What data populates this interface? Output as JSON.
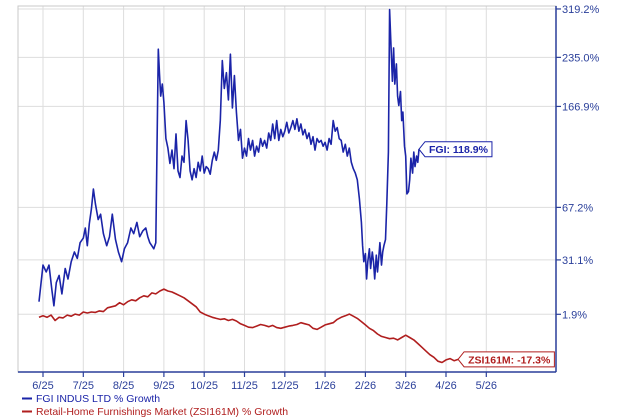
{
  "colors": {
    "series1": "#1b24a8",
    "series2": "#b01e1e",
    "axis": "#2a3f9a",
    "grid": "#dddddd"
  },
  "chart_data": {
    "type": "line",
    "xlabel": "",
    "ylabel": "",
    "y_scale": "log1p",
    "grid": true,
    "legend_position": "bottom-left",
    "y_ticks": [
      {
        "value": 319.2,
        "label": "319.2%"
      },
      {
        "value": 235.0,
        "label": "235.0%"
      },
      {
        "value": 166.9,
        "label": "166.9%"
      },
      {
        "value": 67.2,
        "label": "67.2%"
      },
      {
        "value": 31.1,
        "label": "31.1%"
      },
      {
        "value": 1.9,
        "label": "1.9%"
      }
    ],
    "x_ticks": [
      "6/25",
      "7/25",
      "8/25",
      "9/25",
      "10/25",
      "11/25",
      "12/25",
      "1/26",
      "2/26",
      "3/26",
      "4/26",
      "5/26"
    ],
    "series": [
      {
        "name": "FGI INDUS LTD % Growth",
        "callout": "FGI: 118.9%",
        "color": "#1b24a8",
        "points": [
          [
            -0.1,
            8
          ],
          [
            0.0,
            28
          ],
          [
            0.08,
            24
          ],
          [
            0.15,
            28
          ],
          [
            0.22,
            14
          ],
          [
            0.27,
            6
          ],
          [
            0.33,
            18
          ],
          [
            0.4,
            22
          ],
          [
            0.47,
            12
          ],
          [
            0.55,
            26
          ],
          [
            0.62,
            20
          ],
          [
            0.7,
            30
          ],
          [
            0.78,
            36
          ],
          [
            0.85,
            32
          ],
          [
            0.92,
            42
          ],
          [
            1.0,
            45
          ],
          [
            1.05,
            52
          ],
          [
            1.1,
            40
          ],
          [
            1.15,
            55
          ],
          [
            1.2,
            66
          ],
          [
            1.25,
            82
          ],
          [
            1.3,
            70
          ],
          [
            1.37,
            58
          ],
          [
            1.43,
            62
          ],
          [
            1.5,
            48
          ],
          [
            1.58,
            40
          ],
          [
            1.65,
            46
          ],
          [
            1.72,
            62
          ],
          [
            1.8,
            44
          ],
          [
            1.87,
            36
          ],
          [
            1.95,
            30
          ],
          [
            2.02,
            38
          ],
          [
            2.1,
            42
          ],
          [
            2.18,
            52
          ],
          [
            2.25,
            48
          ],
          [
            2.33,
            56
          ],
          [
            2.4,
            46
          ],
          [
            2.48,
            50
          ],
          [
            2.55,
            52
          ],
          [
            2.6,
            46
          ],
          [
            2.65,
            42
          ],
          [
            2.7,
            40
          ],
          [
            2.75,
            38
          ],
          [
            2.8,
            42
          ],
          [
            2.83,
            120
          ],
          [
            2.86,
            248
          ],
          [
            2.89,
            210
          ],
          [
            2.92,
            180
          ],
          [
            2.96,
            196
          ],
          [
            3.0,
            172
          ],
          [
            3.05,
            130
          ],
          [
            3.1,
            120
          ],
          [
            3.15,
            105
          ],
          [
            3.2,
            118
          ],
          [
            3.25,
            100
          ],
          [
            3.3,
            135
          ],
          [
            3.35,
            98
          ],
          [
            3.4,
            92
          ],
          [
            3.45,
            112
          ],
          [
            3.5,
            106
          ],
          [
            3.55,
            150
          ],
          [
            3.6,
            128
          ],
          [
            3.65,
            98
          ],
          [
            3.7,
            90
          ],
          [
            3.75,
            100
          ],
          [
            3.8,
            92
          ],
          [
            3.85,
            106
          ],
          [
            3.9,
            98
          ],
          [
            3.95,
            112
          ],
          [
            4.0,
            96
          ],
          [
            4.05,
            102
          ],
          [
            4.1,
            100
          ],
          [
            4.15,
            95
          ],
          [
            4.2,
            108
          ],
          [
            4.25,
            116
          ],
          [
            4.3,
            108
          ],
          [
            4.35,
            118
          ],
          [
            4.4,
            150
          ],
          [
            4.45,
            230
          ],
          [
            4.5,
            190
          ],
          [
            4.55,
            212
          ],
          [
            4.6,
            175
          ],
          [
            4.65,
            240
          ],
          [
            4.7,
            165
          ],
          [
            4.75,
            208
          ],
          [
            4.8,
            160
          ],
          [
            4.85,
            128
          ],
          [
            4.9,
            140
          ],
          [
            4.95,
            110
          ],
          [
            5.0,
            120
          ],
          [
            5.05,
            112
          ],
          [
            5.1,
            130
          ],
          [
            5.15,
            118
          ],
          [
            5.2,
            128
          ],
          [
            5.25,
            112
          ],
          [
            5.3,
            122
          ],
          [
            5.35,
            116
          ],
          [
            5.4,
            130
          ],
          [
            5.45,
            122
          ],
          [
            5.5,
            128
          ],
          [
            5.55,
            120
          ],
          [
            5.6,
            136
          ],
          [
            5.65,
            128
          ],
          [
            5.7,
            146
          ],
          [
            5.75,
            130
          ],
          [
            5.8,
            150
          ],
          [
            5.85,
            128
          ],
          [
            5.9,
            140
          ],
          [
            5.95,
            132
          ],
          [
            6.0,
            138
          ],
          [
            6.05,
            148
          ],
          [
            6.1,
            136
          ],
          [
            6.15,
            142
          ],
          [
            6.2,
            150
          ],
          [
            6.25,
            140
          ],
          [
            6.3,
            152
          ],
          [
            6.35,
            138
          ],
          [
            6.4,
            146
          ],
          [
            6.45,
            134
          ],
          [
            6.5,
            140
          ],
          [
            6.55,
            130
          ],
          [
            6.6,
            136
          ],
          [
            6.65,
            124
          ],
          [
            6.7,
            132
          ],
          [
            6.75,
            118
          ],
          [
            6.8,
            130
          ],
          [
            6.85,
            126
          ],
          [
            6.9,
            128
          ],
          [
            6.95,
            122
          ],
          [
            7.0,
            126
          ],
          [
            7.05,
            118
          ],
          [
            7.1,
            130
          ],
          [
            7.15,
            124
          ],
          [
            7.2,
            150
          ],
          [
            7.25,
            138
          ],
          [
            7.3,
            142
          ],
          [
            7.35,
            130
          ],
          [
            7.4,
            128
          ],
          [
            7.45,
            116
          ],
          [
            7.5,
            124
          ],
          [
            7.55,
            112
          ],
          [
            7.6,
            120
          ],
          [
            7.65,
            106
          ],
          [
            7.7,
            100
          ],
          [
            7.75,
            96
          ],
          [
            7.8,
            90
          ],
          [
            7.85,
            74
          ],
          [
            7.9,
            56
          ],
          [
            7.93,
            40
          ],
          [
            7.96,
            30
          ],
          [
            8.0,
            35
          ],
          [
            8.03,
            20
          ],
          [
            8.06,
            30
          ],
          [
            8.1,
            38
          ],
          [
            8.13,
            26
          ],
          [
            8.17,
            36
          ],
          [
            8.2,
            30
          ],
          [
            8.23,
            20
          ],
          [
            8.27,
            34
          ],
          [
            8.3,
            24
          ],
          [
            8.33,
            32
          ],
          [
            8.36,
            42
          ],
          [
            8.4,
            28
          ],
          [
            8.43,
            36
          ],
          [
            8.46,
            40
          ],
          [
            8.5,
            44
          ],
          [
            8.53,
            70
          ],
          [
            8.57,
            116
          ],
          [
            8.6,
            318
          ],
          [
            8.63,
            262
          ],
          [
            8.67,
            200
          ],
          [
            8.7,
            250
          ],
          [
            8.73,
            196
          ],
          [
            8.77,
            225
          ],
          [
            8.8,
            180
          ],
          [
            8.83,
            168
          ],
          [
            8.87,
            186
          ],
          [
            8.9,
            150
          ],
          [
            8.93,
            160
          ],
          [
            8.97,
            122
          ],
          [
            9.0,
            112
          ],
          [
            9.03,
            78
          ],
          [
            9.07,
            80
          ],
          [
            9.1,
            90
          ],
          [
            9.13,
            110
          ],
          [
            9.17,
            96
          ],
          [
            9.2,
            116
          ],
          [
            9.23,
            102
          ],
          [
            9.27,
            112
          ],
          [
            9.3,
            106
          ],
          [
            9.33,
            118.9
          ]
        ]
      },
      {
        "name": "Retail-Home Furnishings Market (ZSI161M) % Growth",
        "callout": "ZSI161M: -17.3%",
        "color": "#b01e1e",
        "points": [
          [
            -0.1,
            0.5
          ],
          [
            0.0,
            1.2
          ],
          [
            0.1,
            0.5
          ],
          [
            0.2,
            1.5
          ],
          [
            0.3,
            -1.0
          ],
          [
            0.4,
            0.5
          ],
          [
            0.5,
            0.2
          ],
          [
            0.6,
            1.5
          ],
          [
            0.7,
            1.0
          ],
          [
            0.8,
            2.0
          ],
          [
            0.9,
            1.5
          ],
          [
            1.0,
            3.0
          ],
          [
            1.1,
            2.5
          ],
          [
            1.2,
            3.0
          ],
          [
            1.3,
            2.8
          ],
          [
            1.4,
            3.5
          ],
          [
            1.5,
            3.2
          ],
          [
            1.6,
            5.0
          ],
          [
            1.7,
            5.5
          ],
          [
            1.8,
            6.0
          ],
          [
            1.9,
            7.5
          ],
          [
            2.0,
            6.5
          ],
          [
            2.1,
            8.0
          ],
          [
            2.2,
            9.0
          ],
          [
            2.3,
            8.5
          ],
          [
            2.4,
            10.0
          ],
          [
            2.5,
            11.0
          ],
          [
            2.6,
            10.5
          ],
          [
            2.7,
            12.5
          ],
          [
            2.8,
            12.0
          ],
          [
            2.9,
            13.5
          ],
          [
            3.0,
            14.5
          ],
          [
            3.1,
            13.5
          ],
          [
            3.2,
            13.0
          ],
          [
            3.3,
            12.0
          ],
          [
            3.4,
            11.0
          ],
          [
            3.5,
            10.0
          ],
          [
            3.6,
            8.5
          ],
          [
            3.7,
            7.0
          ],
          [
            3.8,
            5.5
          ],
          [
            3.9,
            3.0
          ],
          [
            4.0,
            2.0
          ],
          [
            4.1,
            1.2
          ],
          [
            4.2,
            0.5
          ],
          [
            4.3,
            0.0
          ],
          [
            4.4,
            -0.5
          ],
          [
            4.5,
            -0.2
          ],
          [
            4.6,
            -1.0
          ],
          [
            4.7,
            -0.5
          ],
          [
            4.8,
            -1.2
          ],
          [
            4.9,
            -2.5
          ],
          [
            5.0,
            -3.2
          ],
          [
            5.1,
            -4.0
          ],
          [
            5.2,
            -4.2
          ],
          [
            5.3,
            -3.5
          ],
          [
            5.4,
            -2.8
          ],
          [
            5.5,
            -3.2
          ],
          [
            5.6,
            -3.8
          ],
          [
            5.7,
            -3.2
          ],
          [
            5.8,
            -4.2
          ],
          [
            5.9,
            -4.5
          ],
          [
            6.0,
            -4.0
          ],
          [
            6.1,
            -3.5
          ],
          [
            6.2,
            -3.2
          ],
          [
            6.3,
            -2.8
          ],
          [
            6.4,
            -2.0
          ],
          [
            6.5,
            -2.5
          ],
          [
            6.6,
            -3.0
          ],
          [
            6.7,
            -4.5
          ],
          [
            6.8,
            -5.0
          ],
          [
            6.9,
            -4.0
          ],
          [
            7.0,
            -3.0
          ],
          [
            7.1,
            -2.5
          ],
          [
            7.2,
            -2.0
          ],
          [
            7.3,
            -0.5
          ],
          [
            7.4,
            0.5
          ],
          [
            7.5,
            1.2
          ],
          [
            7.6,
            2.0
          ],
          [
            7.7,
            1.0
          ],
          [
            7.8,
            0.0
          ],
          [
            7.9,
            -1.5
          ],
          [
            8.0,
            -3.0
          ],
          [
            8.1,
            -4.5
          ],
          [
            8.2,
            -5.5
          ],
          [
            8.3,
            -7.0
          ],
          [
            8.4,
            -8.0
          ],
          [
            8.5,
            -8.5
          ],
          [
            8.6,
            -9.0
          ],
          [
            8.7,
            -8.8
          ],
          [
            8.8,
            -9.5
          ],
          [
            8.9,
            -8.5
          ],
          [
            9.0,
            -7.5
          ],
          [
            9.1,
            -8.5
          ],
          [
            9.2,
            -9.5
          ],
          [
            9.3,
            -11.0
          ],
          [
            9.4,
            -12.5
          ],
          [
            9.5,
            -14.0
          ],
          [
            9.6,
            -15.5
          ],
          [
            9.7,
            -16.5
          ],
          [
            9.8,
            -18.0
          ],
          [
            9.9,
            -18.5
          ],
          [
            10.0,
            -17.5
          ],
          [
            10.1,
            -17.0
          ],
          [
            10.2,
            -17.8
          ],
          [
            10.3,
            -17.3
          ]
        ]
      }
    ]
  }
}
